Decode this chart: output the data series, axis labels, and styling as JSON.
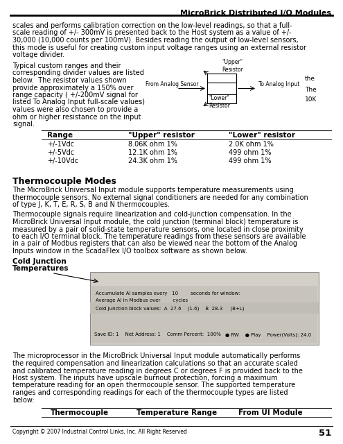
{
  "header_title": "MicroBrick Distributed I/O Modules",
  "bg_color": "#ffffff",
  "text_color": "#000000",
  "page_number": "51",
  "footer_text": "Copyright © 2007 Industrial Control Links, Inc. All Right Reserved",
  "body_text_1": "scales and performs calibration correction on the low-level readings, so that a full-\nscale reading of +/- 300mV is presented back to the Host system as a value of +/-\n30,000 (10,000 counts per 100mV). Besides reading the output of low-level sensors,\nthis mode is useful for creating custom input voltage ranges using an external resistor\nvoltage divider.",
  "body_text_2_lines": [
    "Typical custom ranges and their",
    "corresponding divider values are listed",
    "below.  The resistor values shown",
    "provide approximately a 150% over",
    "range capacity ( +/-200mV signal for",
    "listed To Analog Input full-scale values)",
    "values were also chosen to provide a",
    "ohm or higher resistance on the input",
    "signal."
  ],
  "table_headers": [
    "Range",
    "\"Upper\" resistor",
    "\"Lower\" resistor"
  ],
  "table_rows": [
    [
      "+/-1Vdc",
      "8.06K ohm 1%",
      "2.0K ohm 1%"
    ],
    [
      "+/-5Vdc",
      "12.1K ohm 1%",
      "499 ohm 1%"
    ],
    [
      "+/-10Vdc",
      "24.3K ohm 1%",
      "499 ohm 1%"
    ]
  ],
  "section_title": "Thermocouple Modes",
  "body_text_3_lines": [
    "The MicroBrick Universal Input module supports temperature measurements using",
    "thermocouple sensors. No external signal conditioners are needed for any combination",
    "of type J, K, T, E, R, S, B and N thermocouples."
  ],
  "body_text_4_lines": [
    "Thermocouple signals require linearization and cold-junction compensation. In the",
    "MicroBrick Universal Input module, the cold junction (terminal block) temperature is",
    "measured by a pair of solid-state temperature sensors, one located in close proximity",
    "to each I/O terminal block. The temperature readings from these sensors are available",
    "in a pair of Modbus registers that can also be viewed near the bottom of the Analog",
    "Inputs window in the ScadaFlex I/O toolbox software as shown below."
  ],
  "cj_label_line1": "Cold Junction",
  "cj_label_line2": "Temperatures",
  "body_text_5_lines": [
    "The microprocessor in the MicroBrick Universal Input module automatically performs",
    "the required compensation and linearization calculations so that an accurate scaled",
    "and calibrated temperature reading in degrees C or degrees F is provided back to the",
    "Host system. The inputs have upscale burnout protection, forcing a maximum",
    "temperature reading for an open thermocouple sensor. The supported temperature",
    "ranges and corresponding readings for each of the thermocouple types are listed",
    "below:"
  ],
  "table2_headers": [
    "Thermocouple",
    "Temperature Range",
    "From UI Module"
  ]
}
